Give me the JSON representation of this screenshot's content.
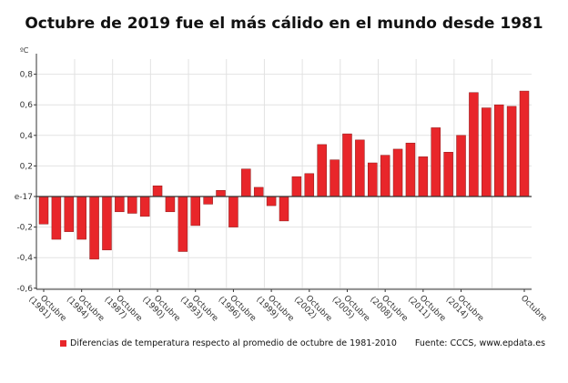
{
  "chart_data": {
    "type": "bar",
    "title": "Octubre de 2019 fue el más cálido en el mundo desde 1981",
    "ylabel": "ºC",
    "xlabel": "",
    "ylim": [
      -0.6,
      0.9
    ],
    "yticks": [
      {
        "value": 0.8,
        "label": "0,8"
      },
      {
        "value": 0.6,
        "label": "0,6"
      },
      {
        "value": 0.4,
        "label": "0,4"
      },
      {
        "value": 0.2,
        "label": "0,2"
      },
      {
        "value": 0,
        "label": "e-17"
      },
      {
        "value": -0.2,
        "label": "-0,2"
      },
      {
        "value": -0.4,
        "label": "-0,4"
      },
      {
        "value": -0.6,
        "label": "-0,6"
      }
    ],
    "categories": [
      "1981",
      "1982",
      "1983",
      "1984",
      "1985",
      "1986",
      "1987",
      "1988",
      "1989",
      "1990",
      "1991",
      "1992",
      "1993",
      "1994",
      "1995",
      "1996",
      "1997",
      "1998",
      "1999",
      "2000",
      "2001",
      "2002",
      "2003",
      "2004",
      "2005",
      "2006",
      "2007",
      "2008",
      "2009",
      "2010",
      "2011",
      "2012",
      "2013",
      "2014",
      "2015",
      "2016",
      "2017",
      "2018",
      "2019"
    ],
    "xtick_labels": [
      {
        "category": "1981",
        "label": "Octubre (1981)"
      },
      {
        "category": "1984",
        "label": "Octubre (1984)"
      },
      {
        "category": "1987",
        "label": "Octubre (1987)"
      },
      {
        "category": "1990",
        "label": "Octubre (1990)"
      },
      {
        "category": "1993",
        "label": "Octubre (1993)"
      },
      {
        "category": "1996",
        "label": "Octubre (1996)"
      },
      {
        "category": "1999",
        "label": "Octubre (1999)"
      },
      {
        "category": "2002",
        "label": "Octubre (2002)"
      },
      {
        "category": "2005",
        "label": "Octubre (2005)"
      },
      {
        "category": "2008",
        "label": "Octubre (2008)"
      },
      {
        "category": "2011",
        "label": "Octubre (2011)"
      },
      {
        "category": "2014",
        "label": "Octubre (2014)"
      },
      {
        "category": "2019",
        "label": "Octubre"
      }
    ],
    "series": [
      {
        "name": "Diferencias de temperatura respecto al promedio de octubre de 1981-2010",
        "color": "#e8262a",
        "values": [
          -0.18,
          -0.28,
          -0.23,
          -0.28,
          -0.41,
          -0.35,
          -0.1,
          -0.11,
          -0.13,
          0.07,
          -0.1,
          -0.36,
          -0.19,
          -0.05,
          0.04,
          -0.2,
          0.18,
          0.06,
          -0.06,
          -0.16,
          0.13,
          0.15,
          0.34,
          0.24,
          0.41,
          0.37,
          0.22,
          0.27,
          0.31,
          0.35,
          0.26,
          0.45,
          0.29,
          0.4,
          0.68,
          0.58,
          0.6,
          0.59,
          0.69
        ]
      }
    ],
    "grid": true,
    "legend": "bottom",
    "source": "Fuente: CCCS, www.epdata.es"
  }
}
